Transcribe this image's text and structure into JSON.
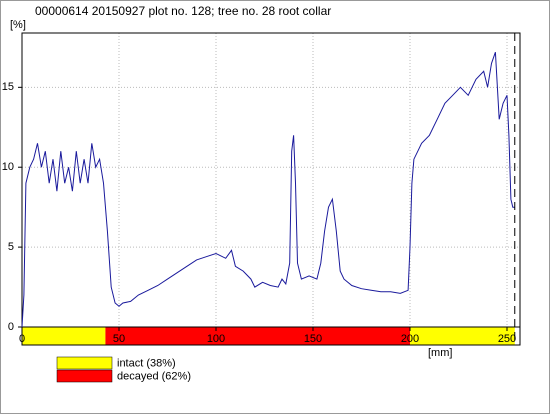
{
  "chart_data": {
    "type": "line",
    "title": "00000614   20150927   plot no. 128; tree no. 28   root collar",
    "ylabel": "[%]",
    "xlabel": "[mm]",
    "x": [
      0,
      1,
      2,
      4,
      6,
      8,
      10,
      12,
      14,
      16,
      18,
      20,
      22,
      24,
      26,
      28,
      30,
      32,
      34,
      36,
      38,
      40,
      42,
      44,
      46,
      48,
      50,
      52,
      56,
      60,
      65,
      70,
      75,
      80,
      85,
      90,
      95,
      100,
      105,
      108,
      110,
      114,
      118,
      120,
      124,
      128,
      132,
      134,
      136,
      138,
      139,
      140,
      141,
      142,
      144,
      148,
      152,
      154,
      156,
      158,
      160,
      162,
      164,
      166,
      170,
      175,
      180,
      185,
      190,
      195,
      199,
      200,
      201,
      202,
      204,
      206,
      210,
      214,
      218,
      222,
      226,
      230,
      234,
      238,
      240,
      242,
      244,
      246,
      248,
      250,
      251,
      252,
      253,
      254
    ],
    "values": [
      0,
      2,
      9,
      10,
      10.5,
      11.5,
      10,
      11,
      9,
      10.5,
      8.5,
      11,
      9,
      10,
      8.5,
      11,
      9,
      10.5,
      9,
      11.5,
      10,
      10.5,
      9,
      6,
      2.5,
      1.5,
      1.3,
      1.5,
      1.6,
      2,
      2.3,
      2.6,
      3,
      3.4,
      3.8,
      4.2,
      4.4,
      4.6,
      4.3,
      4.8,
      3.8,
      3.5,
      3,
      2.5,
      2.8,
      2.6,
      2.5,
      3,
      2.7,
      4,
      11,
      12,
      9,
      4,
      3,
      3.2,
      3,
      4,
      6,
      7.5,
      8,
      6,
      3.5,
      3,
      2.6,
      2.4,
      2.3,
      2.2,
      2.2,
      2.1,
      2.3,
      5,
      9,
      10.5,
      11,
      11.5,
      12,
      13,
      14,
      14.5,
      15,
      14.5,
      15.5,
      16,
      15,
      16.5,
      17.2,
      13,
      14,
      14.5,
      12,
      8,
      7.5,
      7.5
    ],
    "color": "#1a1a9c",
    "xlim": [
      0,
      256.7
    ],
    "ylim": [
      0,
      18.4
    ],
    "xticks": [
      0,
      50,
      100,
      150,
      200,
      250
    ],
    "yticks": [
      0,
      5,
      10,
      15
    ],
    "grid": true,
    "vline": 254,
    "bands": [
      {
        "name": "intact (38%)",
        "from": 0,
        "to": 43,
        "color": "#ffff00"
      },
      {
        "name": "decayed (62%)",
        "from": 43,
        "to": 200,
        "color": "#ff0000"
      },
      {
        "from": 200,
        "to": 254,
        "color": "#ffff00"
      }
    ]
  }
}
